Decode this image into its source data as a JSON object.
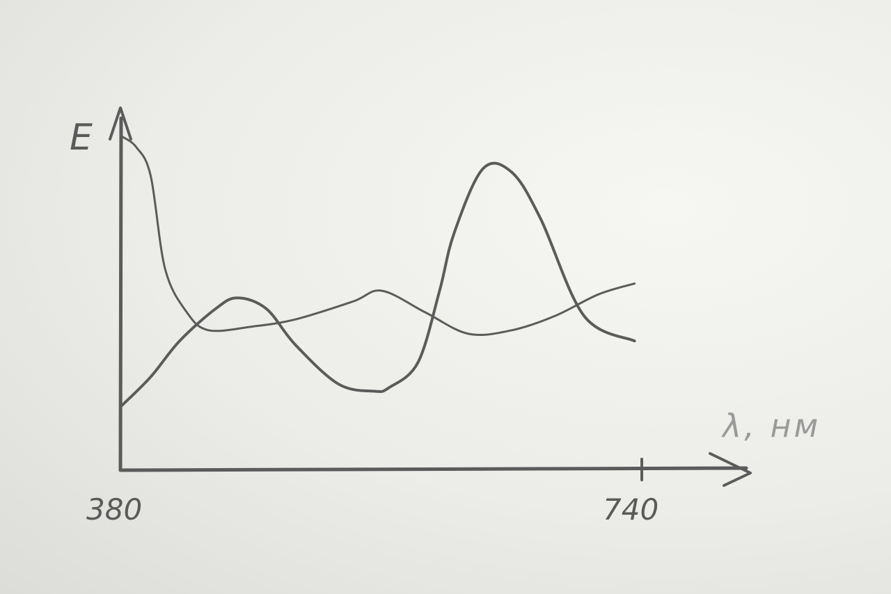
{
  "chart_data": {
    "type": "line",
    "ylabel": "E",
    "xlabel": "λ, нм",
    "x_ticks": [
      "380",
      "740"
    ],
    "xlim": [
      380,
      740
    ],
    "series": [
      {
        "x": [
          380,
          390,
          400,
          410,
          425,
          440,
          470,
          500,
          540,
          560,
          590,
          620,
          650,
          680,
          710,
          735
        ],
        "values": [
          0.93,
          0.9,
          0.82,
          0.56,
          0.44,
          0.39,
          0.4,
          0.42,
          0.47,
          0.5,
          0.44,
          0.38,
          0.39,
          0.43,
          0.49,
          0.52
        ]
      },
      {
        "x": [
          380,
          400,
          420,
          445,
          460,
          480,
          500,
          530,
          555,
          565,
          585,
          600,
          610,
          630,
          650,
          670,
          700,
          735
        ],
        "values": [
          0.18,
          0.26,
          0.36,
          0.45,
          0.48,
          0.45,
          0.35,
          0.24,
          0.22,
          0.23,
          0.3,
          0.5,
          0.66,
          0.84,
          0.83,
          0.7,
          0.43,
          0.36
        ]
      }
    ],
    "colors": {
      "pencil": "#5b5b5b",
      "unit_label": "#9a9a9a"
    }
  }
}
